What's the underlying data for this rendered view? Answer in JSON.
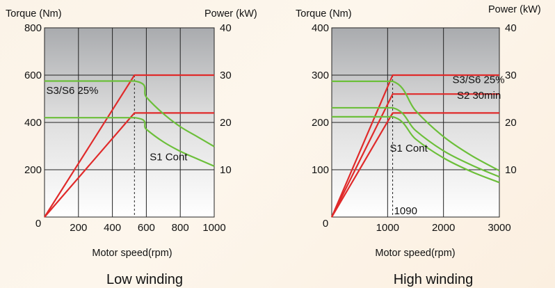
{
  "chart_data": [
    {
      "type": "line",
      "title": "Low winding",
      "xlabel": "Motor speed(rpm)",
      "ylabel": "Torque (Nm)",
      "y2label": "Power (kW)",
      "xlim": [
        0,
        1000
      ],
      "ylim": [
        0,
        800
      ],
      "y2lim": [
        0,
        40
      ],
      "xticks": [
        0,
        200,
        400,
        600,
        800,
        1000
      ],
      "yticks": [
        0,
        200,
        400,
        600,
        800
      ],
      "y2ticks": [
        10,
        20,
        30,
        40
      ],
      "base_speed": 530,
      "grid": true,
      "annotations": [
        {
          "text": "S3/S6 25%",
          "x": 10,
          "y": 520
        },
        {
          "text": "S1 Cont",
          "x": 620,
          "y": 240
        }
      ],
      "series": [
        {
          "kind": "power",
          "color": "#e02a2a",
          "axis": "right",
          "points": [
            [
              0,
              0
            ],
            [
              530,
              30
            ],
            [
              1000,
              30
            ]
          ]
        },
        {
          "kind": "power",
          "color": "#e02a2a",
          "axis": "right",
          "points": [
            [
              0,
              0
            ],
            [
              530,
              22
            ],
            [
              1000,
              22
            ]
          ]
        },
        {
          "kind": "torque",
          "color": "#6cbf3a",
          "axis": "left",
          "points": [
            [
              0,
              575
            ],
            [
              530,
              575
            ],
            [
              600,
              507
            ],
            [
              700,
              437
            ],
            [
              800,
              382
            ],
            [
              900,
              340
            ],
            [
              1000,
              298
            ]
          ]
        },
        {
          "kind": "torque",
          "color": "#6cbf3a",
          "axis": "left",
          "points": [
            [
              0,
              420
            ],
            [
              530,
              420
            ],
            [
              600,
              371
            ],
            [
              700,
              318
            ],
            [
              800,
              278
            ],
            [
              900,
              246
            ],
            [
              1000,
              215
            ]
          ]
        }
      ]
    },
    {
      "type": "line",
      "title": "High winding",
      "xlabel": "Motor speed(rpm)",
      "ylabel": "Torque (Nm)",
      "y2label": "Power (kW)",
      "xlim": [
        0,
        3000
      ],
      "ylim": [
        0,
        400
      ],
      "y2lim": [
        0,
        40
      ],
      "xticks": [
        0,
        1000,
        2000,
        3000
      ],
      "yticks": [
        0,
        100,
        200,
        300,
        400
      ],
      "y2ticks": [
        10,
        20,
        30,
        40
      ],
      "base_speed": 1090,
      "base_speed_label": "1090",
      "grid": true,
      "annotations": [
        {
          "text": "S3/S6 25%",
          "x": 2160,
          "y": 283
        },
        {
          "text": "S2 30min",
          "x": 2240,
          "y": 250
        },
        {
          "text": "S1 Cont",
          "x": 1040,
          "y": 138
        }
      ],
      "series": [
        {
          "kind": "power",
          "color": "#e02a2a",
          "axis": "right",
          "points": [
            [
              0,
              0
            ],
            [
              1090,
              30
            ],
            [
              3000,
              30
            ]
          ]
        },
        {
          "kind": "power",
          "color": "#e02a2a",
          "axis": "right",
          "points": [
            [
              0,
              0
            ],
            [
              1090,
              26
            ],
            [
              3000,
              26
            ]
          ]
        },
        {
          "kind": "power",
          "color": "#e02a2a",
          "axis": "right",
          "points": [
            [
              0,
              0
            ],
            [
              1090,
              22
            ],
            [
              3000,
              22
            ]
          ]
        },
        {
          "kind": "torque",
          "color": "#6cbf3a",
          "axis": "left",
          "points": [
            [
              0,
              287
            ],
            [
              1090,
              287
            ],
            [
              1500,
              225
            ],
            [
              2000,
              170
            ],
            [
              2500,
              130
            ],
            [
              3000,
              98
            ]
          ]
        },
        {
          "kind": "torque",
          "color": "#6cbf3a",
          "axis": "left",
          "points": [
            [
              0,
              231
            ],
            [
              1090,
              231
            ],
            [
              1500,
              183
            ],
            [
              2000,
              140
            ],
            [
              2500,
              110
            ],
            [
              3000,
              85
            ]
          ]
        },
        {
          "kind": "torque",
          "color": "#6cbf3a",
          "axis": "left",
          "points": [
            [
              0,
              212
            ],
            [
              1090,
              212
            ],
            [
              1500,
              165
            ],
            [
              2000,
              125
            ],
            [
              2500,
              96
            ],
            [
              3000,
              73
            ]
          ]
        }
      ]
    }
  ]
}
